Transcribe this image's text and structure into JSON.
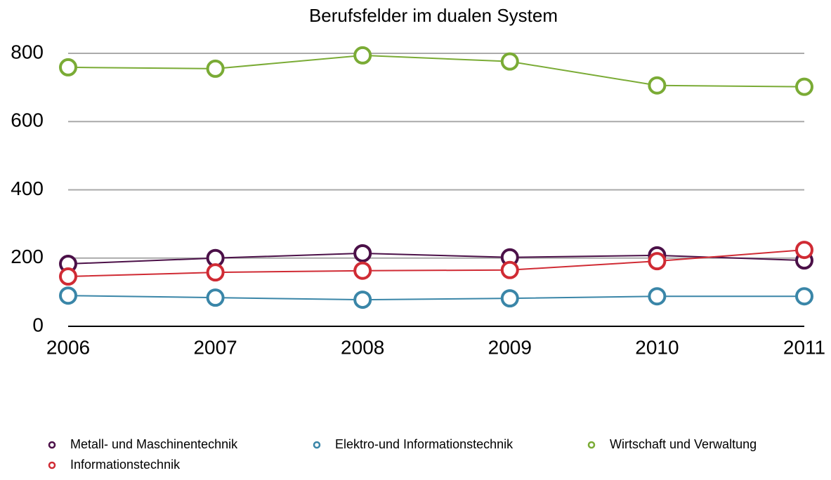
{
  "chart_data": {
    "type": "line",
    "title": "Berufsfelder im dualen System",
    "categories": [
      "2006",
      "2007",
      "2008",
      "2009",
      "2010",
      "2011"
    ],
    "series": [
      {
        "name": "Metall- und Maschinentechnik",
        "color": "#4b1048",
        "values": [
          183,
          200,
          214,
          202,
          208,
          193
        ]
      },
      {
        "name": "Elektro-und Informationstechnik",
        "color": "#3a86a8",
        "values": [
          90,
          84,
          78,
          82,
          88,
          88
        ]
      },
      {
        "name": "Wirtschaft und Verwaltung",
        "color": "#7aab35",
        "values": [
          759,
          755,
          794,
          776,
          706,
          702
        ]
      },
      {
        "name": "Informationstechnik",
        "color": "#d02b34",
        "values": [
          146,
          158,
          163,
          165,
          191,
          224
        ]
      }
    ],
    "ylim": [
      0,
      800
    ],
    "yticks": [
      0,
      200,
      400,
      600,
      800
    ],
    "grid": true,
    "legend": "bottom"
  }
}
